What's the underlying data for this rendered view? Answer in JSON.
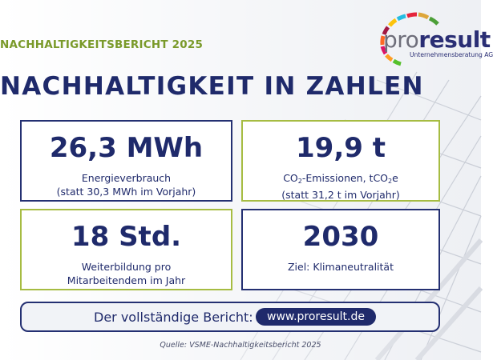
{
  "header": {
    "kicker": "NACHHALTIGKEITSBERICHT 2025",
    "headline": "NACHHALTIGKEIT IN ZAHLEN"
  },
  "logo": {
    "word_a": "pro",
    "word_b": "result",
    "subtitle": "Unternehmensberatung AG"
  },
  "cards": [
    {
      "value": "26,3 MWh",
      "line1": "Energieverbrauch",
      "line2": "(statt 30,3 MWh im Vorjahr)"
    },
    {
      "value": "19,9 t",
      "line1_pre": "CO",
      "line1_sub": "2",
      "line1_mid": "-Emissionen, tCO",
      "line1_sub2": "2",
      "line1_post": "e",
      "line2": "(statt 31,2 t im Vorjahr)"
    },
    {
      "value": "18 Std.",
      "line1": "Weiterbildung pro",
      "line2": "Mitarbeitendem im Jahr"
    },
    {
      "value": "2030",
      "line1": "Ziel: Klimaneutralität"
    }
  ],
  "banner": {
    "label": "Der vollständige Bericht:",
    "link": "www.proresult.de"
  },
  "footer": {
    "source": "Quelle: VSME-Nachhaltigkeitsbericht 2025"
  },
  "colors": {
    "navy": "#1f2a6b",
    "green": "#a6bc42",
    "kicker_green": "#7a9a2a"
  }
}
